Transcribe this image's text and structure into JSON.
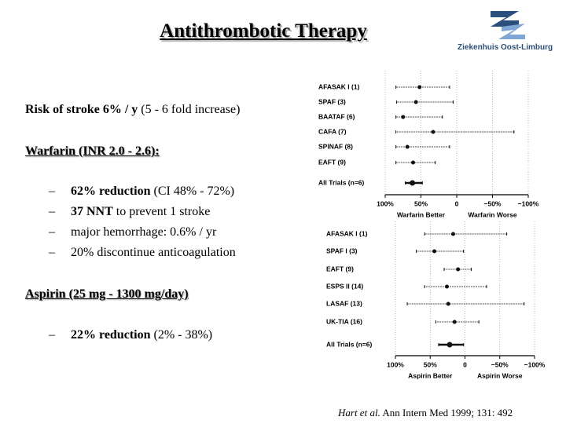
{
  "slide": {
    "title": "Antithrombotic Therapy",
    "logo": "Ziekenhuis Oost-Limburg",
    "risk": {
      "bold": "Risk of stroke 6% / y",
      "rest": " (5 - 6 fold increase)"
    },
    "warfarin_heading": "Warfarin (INR 2.0 - 2.6):",
    "warfarin_points": [
      {
        "bold": "62% reduction",
        "rest": " (CI 48% - 72%)"
      },
      {
        "bold": "37 NNT",
        "rest": " to prevent 1 stroke"
      },
      {
        "bold": "",
        "rest": "major hemorrhage:  0.6% / yr"
      },
      {
        "bold": "",
        "rest": "20% discontinue anticoagulation"
      }
    ],
    "aspirin_heading": "Aspirin (25 mg - 1300 mg/day)",
    "aspirin_points": [
      {
        "bold": "22% reduction",
        "rest": " (2% - 38%)"
      }
    ],
    "citation": {
      "italic": "Hart et al.",
      "rest": " Ann Intern Med 1999; 131: 492"
    }
  },
  "chart_data": [
    {
      "type": "forest",
      "categories": [
        "AFASAK I (1)",
        "SPAF (3)",
        "BAATAF (6)",
        "CAFA (7)",
        "SPINAF (8)",
        "EAFT (9)",
        "All Trials (n=6)"
      ],
      "values": [
        52,
        57,
        75,
        33,
        69,
        61,
        62
      ],
      "ci_low": [
        10,
        5,
        20,
        -80,
        10,
        30,
        48
      ],
      "ci_high": [
        85,
        84,
        85,
        85,
        85,
        85,
        72
      ],
      "xlim": [
        100,
        -100
      ],
      "xticks": [
        {
          "value": 100,
          "label": "100%"
        },
        {
          "value": 50,
          "label": "50%"
        },
        0,
        {
          "value": -50,
          "label": "−50%"
        },
        {
          "value": -100,
          "label": "−100%"
        }
      ],
      "left_label": "Warfarin Better",
      "right_label": "Warfarin Worse",
      "grid": true,
      "color": "#111111"
    },
    {
      "type": "forest",
      "categories": [
        "AFASAK I (1)",
        "SPAF I (3)",
        "EAFT (9)",
        "ESPS II (14)",
        "LASAF (13)",
        "UK-TIA (16)",
        "All Trials (n=6)"
      ],
      "values": [
        17,
        44,
        10,
        26,
        24,
        15,
        22
      ],
      "ci_low": [
        -60,
        2,
        -9,
        -31,
        -85,
        -20,
        2
      ],
      "ci_high": [
        58,
        70,
        30,
        58,
        83,
        42,
        38
      ],
      "xlim": [
        100,
        -100
      ],
      "xticks": [
        {
          "value": 100,
          "label": "100%"
        },
        {
          "value": 50,
          "label": "50%"
        },
        0,
        {
          "value": -50,
          "label": "−50%"
        },
        {
          "value": -100,
          "label": "−100%"
        }
      ],
      "left_label": "Aspirin Better",
      "right_label": "Aspirin Worse",
      "grid": true,
      "color": "#111111"
    }
  ]
}
